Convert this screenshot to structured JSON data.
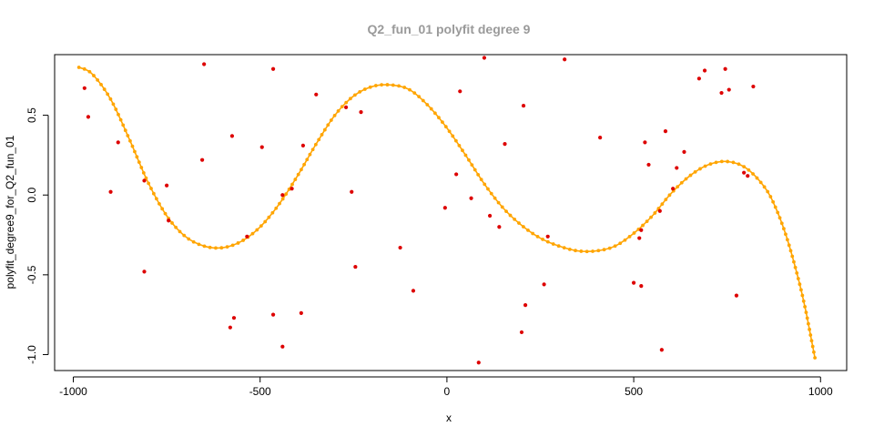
{
  "chart_data": {
    "type": "scatter",
    "title": "Q2_fun_01 polyfit degree 9",
    "xlabel": "x",
    "ylabel": "polyfit_degree9_for_Q2_fun_01",
    "xlim": [
      -1050,
      1070
    ],
    "ylim": [
      -1.1,
      0.88
    ],
    "xticks": [
      -1000,
      -500,
      0,
      500,
      1000
    ],
    "xtick_labels": [
      "-1000",
      "-500",
      "0",
      "500",
      "1000"
    ],
    "yticks": [
      -1.0,
      -0.5,
      0.0,
      0.5
    ],
    "ytick_labels": [
      "-1.0",
      "-0.5",
      "0.0",
      "0.5"
    ],
    "grid": false,
    "colors": {
      "points": "#dd0000",
      "fit": "#ffa500",
      "title": "#9a9a9a",
      "axis": "#000000"
    },
    "series": [
      {
        "type": "scatter",
        "points": [
          [
            -970,
            0.67
          ],
          [
            -960,
            0.49
          ],
          [
            -900,
            0.02
          ],
          [
            -880,
            0.33
          ],
          [
            -810,
            0.09
          ],
          [
            -810,
            -0.48
          ],
          [
            -750,
            0.06
          ],
          [
            -745,
            -0.16
          ],
          [
            -655,
            0.22
          ],
          [
            -650,
            0.82
          ],
          [
            -575,
            0.37
          ],
          [
            -580,
            -0.83
          ],
          [
            -570,
            -0.77
          ],
          [
            -535,
            -0.26
          ],
          [
            -495,
            0.3
          ],
          [
            -465,
            0.79
          ],
          [
            -465,
            -0.75
          ],
          [
            -440,
            -0.95
          ],
          [
            -440,
            0.0
          ],
          [
            -415,
            0.04
          ],
          [
            -385,
            0.31
          ],
          [
            -390,
            -0.74
          ],
          [
            -350,
            0.63
          ],
          [
            -270,
            0.55
          ],
          [
            -255,
            0.02
          ],
          [
            -245,
            -0.45
          ],
          [
            -230,
            0.52
          ],
          [
            -125,
            -0.33
          ],
          [
            -90,
            -0.6
          ],
          [
            -5,
            -0.08
          ],
          [
            25,
            0.13
          ],
          [
            35,
            0.65
          ],
          [
            65,
            -0.02
          ],
          [
            85,
            -1.05
          ],
          [
            100,
            0.86
          ],
          [
            115,
            -0.13
          ],
          [
            140,
            -0.2
          ],
          [
            155,
            0.32
          ],
          [
            200,
            -0.86
          ],
          [
            205,
            0.56
          ],
          [
            210,
            -0.69
          ],
          [
            260,
            -0.56
          ],
          [
            270,
            -0.26
          ],
          [
            315,
            0.85
          ],
          [
            410,
            0.36
          ],
          [
            500,
            -0.55
          ],
          [
            515,
            -0.27
          ],
          [
            520,
            -0.22
          ],
          [
            520,
            -0.57
          ],
          [
            530,
            0.33
          ],
          [
            540,
            0.19
          ],
          [
            570,
            -0.1
          ],
          [
            575,
            -0.97
          ],
          [
            585,
            0.4
          ],
          [
            605,
            0.04
          ],
          [
            615,
            0.17
          ],
          [
            635,
            0.27
          ],
          [
            675,
            0.73
          ],
          [
            690,
            0.78
          ],
          [
            735,
            0.64
          ],
          [
            745,
            0.79
          ],
          [
            755,
            0.66
          ],
          [
            775,
            -0.63
          ],
          [
            795,
            0.14
          ],
          [
            805,
            0.12
          ],
          [
            820,
            0.68
          ]
        ]
      },
      {
        "type": "line",
        "x": [
          -985,
          -950,
          -900,
          -850,
          -800,
          -750,
          -700,
          -650,
          -600,
          -550,
          -500,
          -450,
          -400,
          -350,
          -300,
          -250,
          -200,
          -150,
          -100,
          -50,
          0,
          50,
          100,
          150,
          200,
          250,
          300,
          350,
          400,
          450,
          500,
          550,
          600,
          650,
          700,
          750,
          800,
          850,
          880,
          910,
          940,
          960,
          975,
          985
        ],
        "y": [
          0.8,
          0.76,
          0.6,
          0.35,
          0.08,
          -0.13,
          -0.26,
          -0.32,
          -0.33,
          -0.29,
          -0.2,
          -0.06,
          0.12,
          0.32,
          0.5,
          0.62,
          0.68,
          0.69,
          0.66,
          0.56,
          0.42,
          0.25,
          0.07,
          -0.08,
          -0.19,
          -0.27,
          -0.32,
          -0.35,
          -0.35,
          -0.32,
          -0.24,
          -0.13,
          0.01,
          0.12,
          0.19,
          0.21,
          0.17,
          0.05,
          -0.08,
          -0.27,
          -0.52,
          -0.72,
          -0.9,
          -1.02
        ]
      }
    ]
  }
}
